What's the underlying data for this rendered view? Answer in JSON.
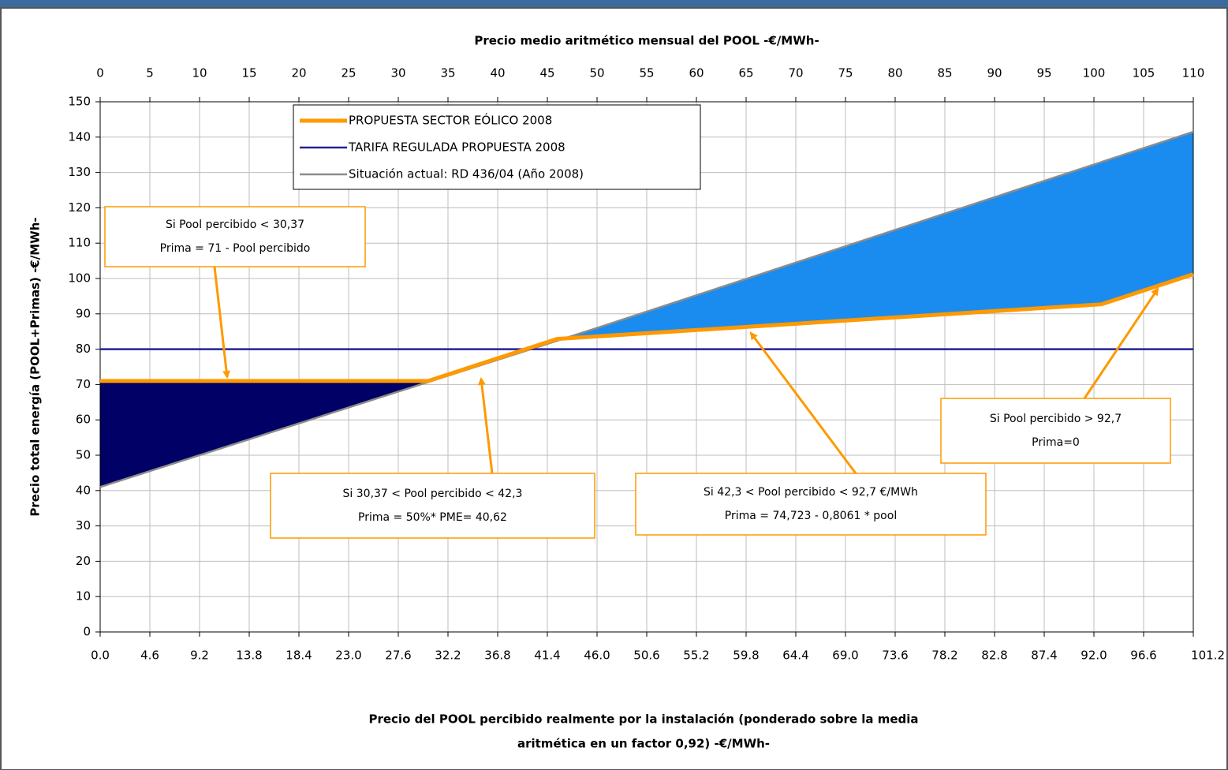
{
  "chart_data": {
    "type": "line",
    "title": "Precio medio aritmético mensual del POOL -€/MWh-",
    "xlabel": [
      "Precio del POOL percibido realmente por la instalación (ponderado sobre la media",
      "aritmética en un factor 0,92) -€/MWh-"
    ],
    "ylabel": "Precio total energía (POOL+Primas) -€/MWh-",
    "xlim": [
      0,
      101.2
    ],
    "xticks": [
      {
        "value": 0,
        "label": "0.0"
      },
      4.6,
      9.2,
      13.8,
      18.4,
      {
        "value": 23,
        "label": "23.0"
      },
      27.6,
      32.2,
      36.8,
      41.4,
      {
        "value": 46,
        "label": "46.0"
      },
      50.6,
      55.2,
      59.8,
      64.4,
      {
        "value": 69,
        "label": "69.0"
      },
      73.6,
      78.2,
      82.8,
      87.4,
      {
        "value": 92,
        "label": "92.0"
      },
      96.6,
      101.2
    ],
    "x2lim": [
      0,
      110
    ],
    "x2ticks": [
      0,
      5,
      10,
      15,
      20,
      25,
      30,
      35,
      40,
      45,
      50,
      55,
      60,
      65,
      70,
      75,
      80,
      85,
      90,
      95,
      100,
      105,
      110
    ],
    "ylim": [
      0,
      150
    ],
    "yticks": [
      0,
      10,
      20,
      30,
      40,
      50,
      60,
      70,
      80,
      90,
      100,
      110,
      120,
      130,
      140,
      150
    ],
    "grid": true,
    "series": [
      {
        "name": "PROPUESTA SECTOR EÓLICO 2008",
        "color": "#ff9900",
        "x": [
          0,
          30.37,
          42.3,
          92.7,
          101.2
        ],
        "values": [
          71,
          71,
          82.9,
          92.7,
          101.2
        ]
      },
      {
        "name": "TARIFA REGULADA PROPUESTA 2008",
        "color": "#22229a",
        "x": [
          0,
          101.2
        ],
        "values": [
          80,
          80
        ]
      },
      {
        "name": "Situación actual: RD 436/04 (Año 2008)",
        "color": "#8c8c8c",
        "x": [
          0,
          46,
          101.2
        ],
        "values": [
          41,
          86,
          141.5
        ]
      }
    ],
    "fill_colors": [
      "#000066",
      "#1a8cf0"
    ],
    "annotations": [
      {
        "lines": [
          "Si Pool percibido  < 30,37",
          "Prima = 71 - Pool percibido"
        ]
      },
      {
        "lines": [
          "Si 30,37 < Pool percibido < 42,3",
          "Prima = 50%* PME= 40,62"
        ]
      },
      {
        "lines": [
          "Si 42,3 < Pool percibido < 92,7 €/MWh",
          "Prima = 74,723 - 0,8061 * pool"
        ]
      },
      {
        "lines": [
          "Si Pool percibido > 92,7",
          "Prima=0"
        ]
      }
    ]
  }
}
